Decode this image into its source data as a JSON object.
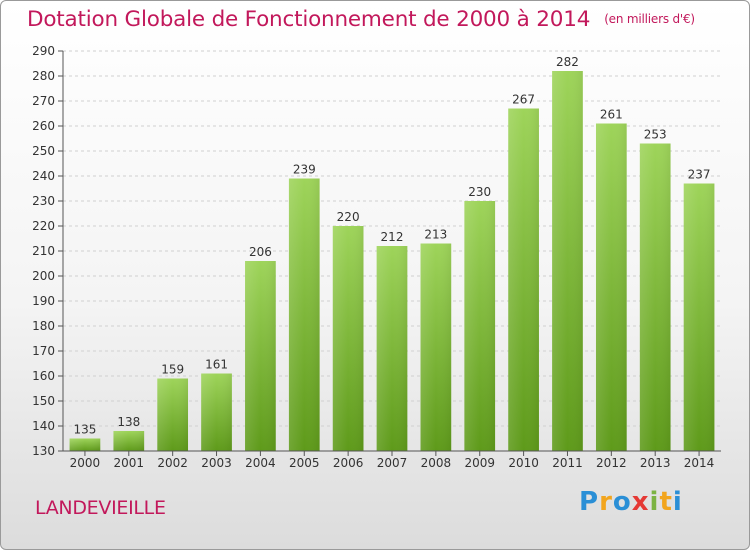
{
  "title": "Dotation Globale de Fonctionnement de 2000 à 2014",
  "subtitle": "(en milliers d'€)",
  "place": "LANDEVIEILLE",
  "logo": {
    "letters": [
      "P",
      "r",
      "o",
      "x",
      "i",
      "t",
      "i"
    ],
    "colors": [
      "#2a8fd6",
      "#f2a51d",
      "#2a8fd6",
      "#e53935",
      "#7cb342",
      "#f2a51d",
      "#2a8fd6"
    ]
  },
  "chart_data": {
    "type": "bar",
    "categories": [
      "2000",
      "2001",
      "2002",
      "2003",
      "2004",
      "2005",
      "2006",
      "2007",
      "2008",
      "2009",
      "2010",
      "2011",
      "2012",
      "2013",
      "2014"
    ],
    "values": [
      135,
      138,
      159,
      161,
      206,
      239,
      220,
      212,
      213,
      230,
      267,
      282,
      261,
      253,
      237
    ],
    "ylim": [
      130,
      290
    ],
    "yticks": [
      130,
      140,
      150,
      160,
      170,
      180,
      190,
      200,
      210,
      220,
      230,
      240,
      250,
      260,
      270,
      280,
      290
    ],
    "grid": true,
    "bar_color": "#7cb82f"
  }
}
